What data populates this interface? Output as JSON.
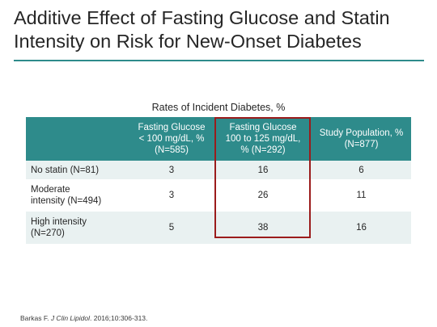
{
  "slide": {
    "title": "Additive Effect of Fasting Glucose and Statin Intensity on Risk for New-Onset Diabetes"
  },
  "table": {
    "caption": "Rates of Incident Diabetes, %",
    "headers": [
      "",
      "Fasting Glucose\n< 100 mg/dL, %\n(N=585)",
      "Fasting Glucose\n100 to 125 mg/dL,\n% (N=292)",
      "Study Population, %\n(N=877)"
    ],
    "rows": [
      {
        "label": "No statin (N=81)",
        "values": [
          "3",
          "16",
          "6"
        ]
      },
      {
        "label": "Moderate\nintensity (N=494)",
        "values": [
          "3",
          "26",
          "11"
        ]
      },
      {
        "label": "High intensity\n(N=270)",
        "values": [
          "5",
          "38",
          "16"
        ]
      }
    ]
  },
  "citation": {
    "author": "Barkas F.",
    "journal": "J Clin Lipidol",
    "details": ". 2016;10:306-313."
  },
  "colors": {
    "header_fill": "#2e8b8b",
    "highlight_border": "#9b1c1c",
    "row_band": "#e9f1f1"
  }
}
